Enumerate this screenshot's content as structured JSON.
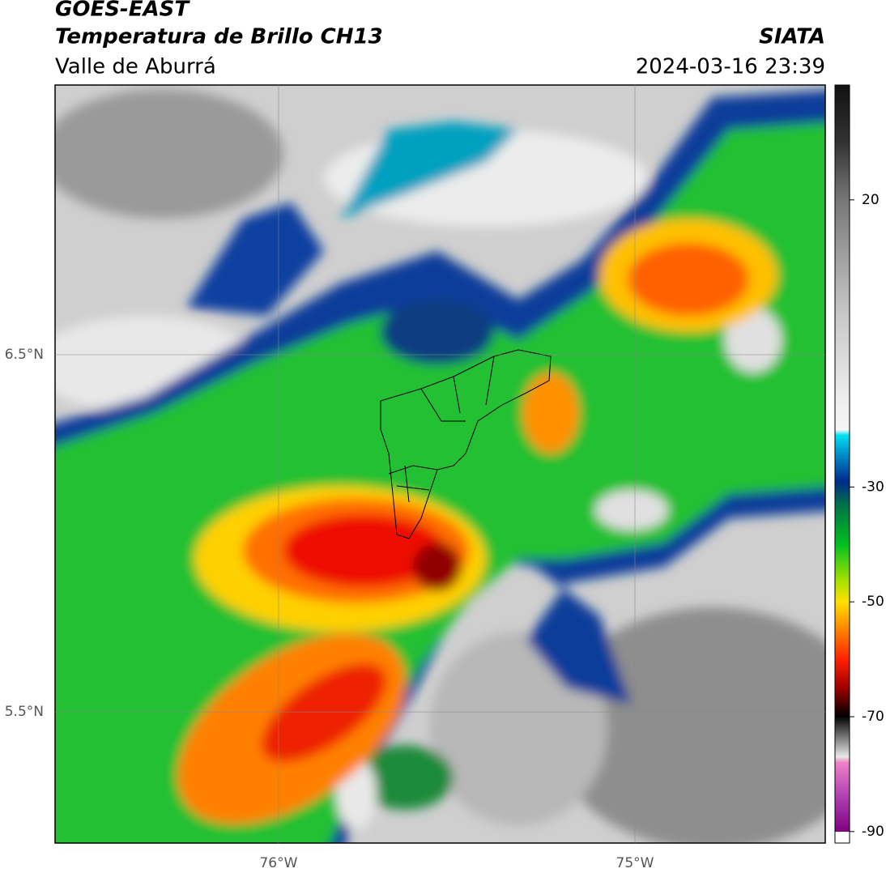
{
  "header": {
    "title": "GOES-EAST",
    "subtitle": "Temperatura de Brillo CH13",
    "region": "Valle de Aburrá",
    "source": "SIATA",
    "datetime": "2024-03-16 23:39"
  },
  "map": {
    "lonlim": [
      -76.627,
      -74.466
    ],
    "latlim": [
      5.133,
      7.255
    ],
    "xticks": [
      {
        "value": -76,
        "label": "76°W"
      },
      {
        "value": -75,
        "label": "75°W"
      }
    ],
    "yticks": [
      {
        "value": 6.5,
        "label": "6.5°N"
      },
      {
        "value": 5.5,
        "label": "5.5°N"
      }
    ],
    "grid": true
  },
  "colorbar": {
    "lim": [
      -92,
      40
    ],
    "ticks": [
      20,
      -30,
      -50,
      -70,
      -90
    ]
  }
}
